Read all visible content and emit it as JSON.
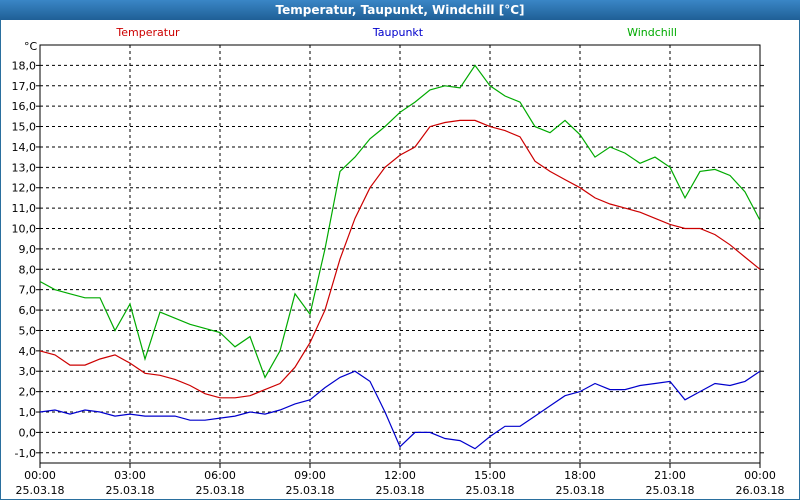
{
  "window": {
    "title": "Temperatur, Taupunkt, Windchill [°C]"
  },
  "chart_data": {
    "type": "line",
    "title": "Temperatur, Taupunkt, Windchill [°C]",
    "unit_label": "°C",
    "ylim": [
      -1.5,
      19
    ],
    "y_ticks": [
      "18,0",
      "17,0",
      "16,0",
      "15,0",
      "14,0",
      "13,0",
      "12,0",
      "11,0",
      "10,0",
      "9,0",
      "8,0",
      "7,0",
      "6,0",
      "5,0",
      "4,0",
      "3,0",
      "2,0",
      "1,0",
      "0,0",
      "-1,0"
    ],
    "x_time_labels": [
      "00:00",
      "03:00",
      "06:00",
      "09:00",
      "12:00",
      "15:00",
      "18:00",
      "21:00",
      "00:00"
    ],
    "x_date_labels": [
      "25.03.18",
      "25.03.18",
      "25.03.18",
      "25.03.18",
      "25.03.18",
      "25.03.18",
      "25.03.18",
      "25.03.18",
      "26.03.18"
    ],
    "xlim_hours": [
      0,
      24
    ],
    "grid": true,
    "series": [
      {
        "name": "Temperatur",
        "color": "#cc0000",
        "x": [
          0,
          0.5,
          1,
          1.5,
          2,
          2.5,
          3,
          3.5,
          4,
          4.5,
          5,
          5.5,
          6,
          6.5,
          7,
          7.5,
          8,
          8.5,
          9,
          9.5,
          10,
          10.5,
          11,
          11.5,
          12,
          12.5,
          13,
          13.5,
          14,
          14.5,
          15,
          15.5,
          16,
          16.5,
          17,
          17.5,
          18,
          18.5,
          19,
          19.5,
          20,
          20.5,
          21,
          21.5,
          22,
          22.5,
          23,
          23.5,
          24
        ],
        "values": [
          4.0,
          3.8,
          3.3,
          3.3,
          3.6,
          3.8,
          3.4,
          2.9,
          2.8,
          2.6,
          2.3,
          1.9,
          1.7,
          1.7,
          1.8,
          2.1,
          2.4,
          3.2,
          4.4,
          6.0,
          8.5,
          10.5,
          12.0,
          13.0,
          13.6,
          14.0,
          15.0,
          15.2,
          15.3,
          15.3,
          15.0,
          14.8,
          14.5,
          13.3,
          12.8,
          12.4,
          12.0,
          11.5,
          11.2,
          11.0,
          10.8,
          10.5,
          10.2,
          10.0,
          10.0,
          9.7,
          9.2,
          8.6,
          8.0
        ]
      },
      {
        "name": "Taupunkt",
        "color": "#0000cc",
        "x": [
          0,
          0.5,
          1,
          1.5,
          2,
          2.5,
          3,
          3.5,
          4,
          4.5,
          5,
          5.5,
          6,
          6.5,
          7,
          7.5,
          8,
          8.5,
          9,
          9.5,
          10,
          10.5,
          11,
          11.5,
          12,
          12.5,
          13,
          13.5,
          14,
          14.5,
          15,
          15.5,
          16,
          16.5,
          17,
          17.5,
          18,
          18.5,
          19,
          19.5,
          20,
          20.5,
          21,
          21.5,
          22,
          22.5,
          23,
          23.5,
          24
        ],
        "values": [
          1.0,
          1.1,
          0.9,
          1.1,
          1.0,
          0.8,
          0.9,
          0.8,
          0.8,
          0.8,
          0.6,
          0.6,
          0.7,
          0.8,
          1.0,
          0.9,
          1.1,
          1.4,
          1.6,
          2.2,
          2.7,
          3.0,
          2.5,
          1.0,
          -0.7,
          0.0,
          0.0,
          -0.3,
          -0.4,
          -0.8,
          -0.2,
          0.3,
          0.3,
          0.8,
          1.3,
          1.8,
          2.0,
          2.4,
          2.1,
          2.1,
          2.3,
          2.4,
          2.5,
          1.6,
          2.0,
          2.4,
          2.3,
          2.5,
          3.0
        ]
      },
      {
        "name": "Windchill",
        "color": "#00aa00",
        "x": [
          0,
          0.5,
          1,
          1.5,
          2,
          2.5,
          3,
          3.5,
          4,
          4.5,
          5,
          5.5,
          6,
          6.5,
          7,
          7.5,
          8,
          8.5,
          9,
          9.5,
          10,
          10.5,
          11,
          11.5,
          12,
          12.5,
          13,
          13.5,
          14,
          14.5,
          15,
          15.5,
          16,
          16.5,
          17,
          17.5,
          18,
          18.5,
          19,
          19.5,
          20,
          20.5,
          21,
          21.5,
          22,
          22.5,
          23,
          23.5,
          24
        ],
        "values": [
          7.4,
          7.0,
          6.8,
          6.6,
          6.6,
          5.0,
          6.3,
          3.6,
          5.9,
          5.6,
          5.3,
          5.1,
          4.9,
          4.2,
          4.7,
          2.7,
          4.0,
          6.8,
          5.8,
          9.0,
          12.8,
          13.5,
          14.4,
          15.0,
          15.7,
          16.2,
          16.8,
          17.0,
          16.9,
          18.0,
          17.0,
          16.5,
          16.2,
          15.0,
          14.7,
          15.3,
          14.6,
          13.5,
          14.0,
          13.7,
          13.2,
          13.5,
          13.0,
          11.5,
          12.8,
          12.9,
          12.6,
          11.8,
          10.4
        ]
      }
    ]
  }
}
